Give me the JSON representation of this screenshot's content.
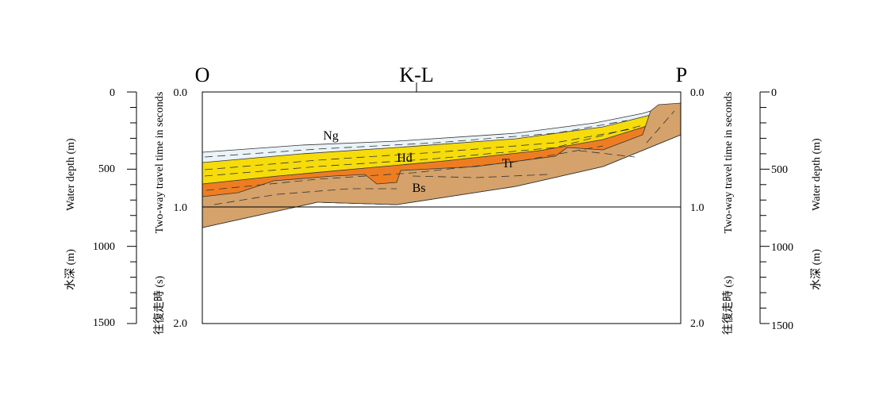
{
  "section": {
    "start": "O",
    "middle": "K-L",
    "end": "P"
  },
  "layers": [
    "Ng",
    "Hd",
    "Tr",
    "Bs"
  ],
  "twt_axis": {
    "title_en": "Two-way travel time in seconds",
    "title_ja": "往復走時 (s)",
    "ticks": [
      "0.0",
      "1.0",
      "2.0"
    ]
  },
  "depth_axis": {
    "title_en": "Water depth (m)",
    "title_ja": "水深 (m)",
    "ticks": [
      "0",
      "500",
      "1000",
      "1500"
    ]
  }
}
